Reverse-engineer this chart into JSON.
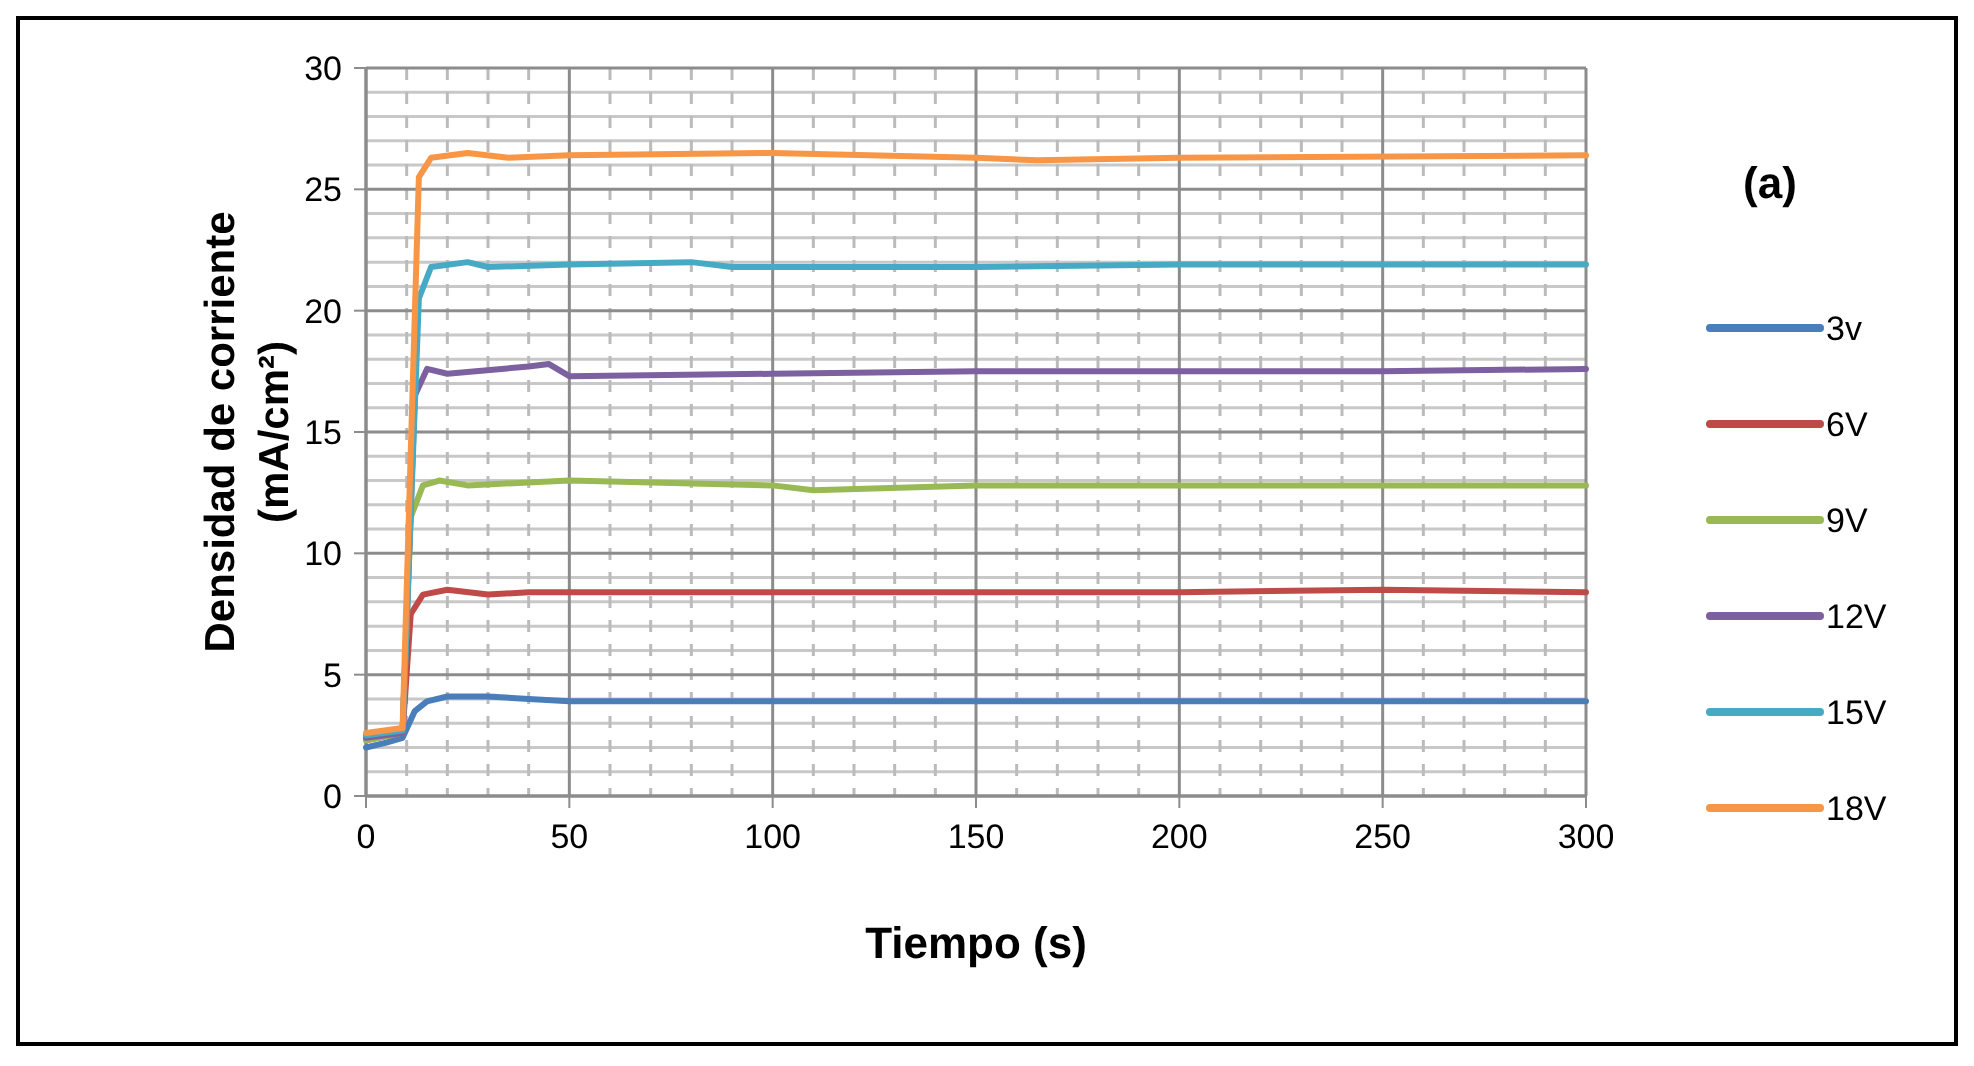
{
  "chart_data": {
    "type": "line",
    "xlabel": "Tiempo (s)",
    "ylabel": "Densidad de corriente (mA/cm²)",
    "annotations": [
      "(a)"
    ],
    "xlim": [
      0,
      300
    ],
    "xticks": [
      0,
      50,
      100,
      150,
      200,
      250,
      300
    ],
    "ylim": [
      0,
      30
    ],
    "yticks": [
      0,
      5,
      10,
      15,
      20,
      25,
      30
    ],
    "grid": true,
    "legend": "right",
    "line_style": "solid",
    "series": [
      {
        "name": "3v",
        "color": "#4a7ebb",
        "x": [
          0,
          5,
          9,
          12,
          15,
          20,
          30,
          40,
          50,
          100,
          150,
          200,
          250,
          300
        ],
        "values": [
          2.0,
          2.2,
          2.4,
          3.5,
          3.9,
          4.1,
          4.1,
          4.0,
          3.9,
          3.9,
          3.9,
          3.9,
          3.9,
          3.9
        ]
      },
      {
        "name": "6V",
        "color": "#be4b48",
        "x": [
          0,
          9,
          11,
          14,
          20,
          30,
          40,
          50,
          100,
          150,
          200,
          250,
          300
        ],
        "values": [
          2.3,
          2.6,
          7.5,
          8.3,
          8.5,
          8.3,
          8.4,
          8.4,
          8.4,
          8.4,
          8.4,
          8.5,
          8.4
        ]
      },
      {
        "name": "9V",
        "color": "#98b954",
        "x": [
          0,
          9,
          11,
          14,
          18,
          25,
          50,
          100,
          110,
          150,
          200,
          300
        ],
        "values": [
          2.3,
          2.6,
          11.5,
          12.8,
          13.0,
          12.8,
          13.0,
          12.8,
          12.6,
          12.8,
          12.8,
          12.8
        ]
      },
      {
        "name": "12V",
        "color": "#7d60a0",
        "x": [
          0,
          9,
          12,
          15,
          20,
          40,
          45,
          50,
          100,
          150,
          200,
          250,
          300
        ],
        "values": [
          2.4,
          2.6,
          16.5,
          17.6,
          17.4,
          17.7,
          17.8,
          17.3,
          17.4,
          17.5,
          17.5,
          17.5,
          17.6
        ]
      },
      {
        "name": "15V",
        "color": "#46aac5",
        "x": [
          0,
          9,
          13,
          16,
          25,
          30,
          50,
          80,
          90,
          120,
          150,
          200,
          300
        ],
        "values": [
          2.5,
          2.7,
          20.5,
          21.8,
          22.0,
          21.8,
          21.9,
          22.0,
          21.8,
          21.8,
          21.8,
          21.9,
          21.9
        ]
      },
      {
        "name": "18V",
        "color": "#f79646",
        "x": [
          0,
          9,
          13,
          16,
          25,
          35,
          50,
          100,
          150,
          165,
          200,
          300
        ],
        "values": [
          2.6,
          2.8,
          25.5,
          26.3,
          26.5,
          26.3,
          26.4,
          26.5,
          26.3,
          26.2,
          26.3,
          26.4
        ]
      }
    ]
  }
}
